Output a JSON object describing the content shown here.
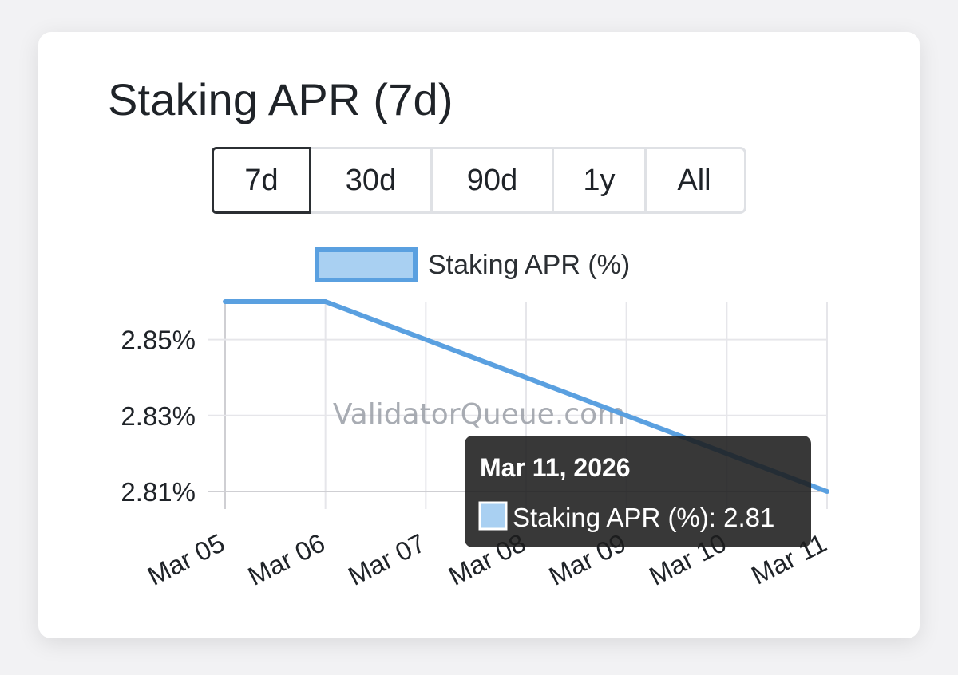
{
  "chart_data": {
    "type": "line",
    "title": "Staking APR (7d)",
    "ranges": [
      "7d",
      "30d",
      "90d",
      "1y",
      "All"
    ],
    "selected_range": "7d",
    "x": [
      "Mar 05",
      "Mar 06",
      "Mar 07",
      "Mar 08",
      "Mar 09",
      "Mar 10",
      "Mar 11"
    ],
    "series": [
      {
        "name": "Staking APR (%)",
        "values": [
          2.86,
          2.86,
          2.85,
          2.84,
          2.83,
          2.82,
          2.81
        ],
        "color": "#5aa0e0",
        "fill": "#a9d0f2"
      }
    ],
    "y_ticks": [
      "2.85%",
      "2.83%",
      "2.81%"
    ],
    "y_tick_values": [
      2.85,
      2.83,
      2.81
    ],
    "ylim": [
      2.81,
      2.86
    ],
    "grid": true,
    "legend_position": "top",
    "watermark": "ValidatorQueue.com",
    "tooltip": {
      "title": "Mar 11, 2026",
      "label": "Staking APR (%): 2.81",
      "point_index": 6
    }
  }
}
